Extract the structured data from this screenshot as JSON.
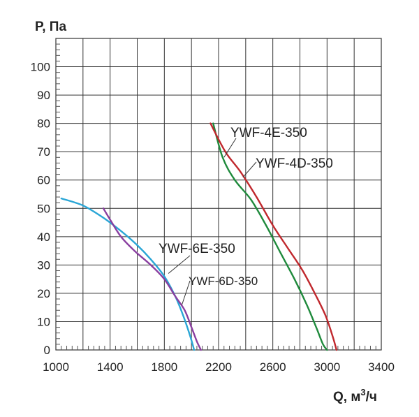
{
  "chart_data": {
    "type": "line",
    "xlabel": "Q, м³/ч",
    "xlabel_parts": {
      "main": "Q, м",
      "sup": "3",
      "rest": "/ч"
    },
    "ylabel": "P, Па",
    "xlim": [
      1000,
      3400
    ],
    "ylim": [
      0,
      110
    ],
    "x_ticks": [
      1000,
      1400,
      1800,
      2200,
      2600,
      3000,
      3400
    ],
    "y_ticks": [
      0,
      10,
      20,
      30,
      40,
      50,
      60,
      70,
      80,
      90,
      100
    ],
    "x_grid_step": 200,
    "y_grid_step": 10,
    "grid": true,
    "series": [
      {
        "name": "YWF-4E-350",
        "color": "#1f8a3c",
        "points": [
          [
            2160,
            80
          ],
          [
            2230,
            68
          ],
          [
            2320,
            60
          ],
          [
            2440,
            53
          ],
          [
            2550,
            44
          ],
          [
            2660,
            34
          ],
          [
            2760,
            25
          ],
          [
            2850,
            16
          ],
          [
            2920,
            8
          ],
          [
            2970,
            2
          ],
          [
            3000,
            0
          ]
        ]
      },
      {
        "name": "YWF-4D-350",
        "color": "#c0282d",
        "points": [
          [
            2140,
            80
          ],
          [
            2250,
            70
          ],
          [
            2360,
            63
          ],
          [
            2480,
            54
          ],
          [
            2600,
            44
          ],
          [
            2710,
            36
          ],
          [
            2820,
            28
          ],
          [
            2920,
            19
          ],
          [
            2990,
            12
          ],
          [
            3040,
            5
          ],
          [
            3070,
            0
          ]
        ]
      },
      {
        "name": "YWF-6E-350",
        "color": "#2aa6d6",
        "points": [
          [
            1040,
            53.5
          ],
          [
            1200,
            51
          ],
          [
            1340,
            47
          ],
          [
            1480,
            42
          ],
          [
            1600,
            37
          ],
          [
            1700,
            32
          ],
          [
            1800,
            26
          ],
          [
            1880,
            19
          ],
          [
            1940,
            12
          ],
          [
            1990,
            5
          ],
          [
            2020,
            0
          ]
        ]
      },
      {
        "name": "YWF-6D-350",
        "color": "#8a3fa0",
        "points": [
          [
            1350,
            50
          ],
          [
            1400,
            46
          ],
          [
            1480,
            40
          ],
          [
            1580,
            35
          ],
          [
            1700,
            30
          ],
          [
            1800,
            25
          ],
          [
            1880,
            19
          ],
          [
            1950,
            14
          ],
          [
            2000,
            8
          ],
          [
            2040,
            3
          ],
          [
            2070,
            0
          ]
        ]
      }
    ]
  }
}
